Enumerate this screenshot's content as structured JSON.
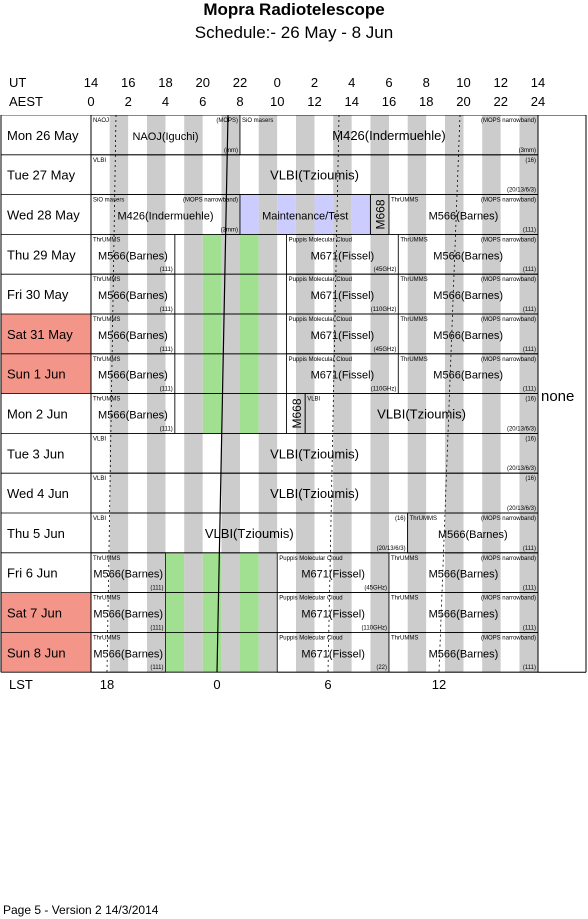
{
  "header": {
    "title": "Mopra Radiotelescope",
    "subtitle": "Schedule:- 26 May - 8  Jun"
  },
  "axes": {
    "ut_label": "UT",
    "aest_label": "AEST",
    "lst_label": "LST",
    "ut_ticks": [
      "14",
      "16",
      "18",
      "20",
      "22",
      "0",
      "2",
      "4",
      "6",
      "8",
      "10",
      "12",
      "14"
    ],
    "aest_ticks": [
      "0",
      "2",
      "4",
      "6",
      "8",
      "10",
      "12",
      "14",
      "16",
      "18",
      "20",
      "22",
      "24"
    ],
    "lst_ticks": [
      "18",
      "0",
      "6",
      "12"
    ]
  },
  "side_note": "none",
  "footer": "Page 5 - Version 2  14/3/2014",
  "colors": {
    "weekend": "#f4958a",
    "green": "#a0e090",
    "gray": "#cccccc",
    "blue": "#ccccff"
  },
  "days": [
    {
      "label": "Mon  26 May",
      "weekend": false,
      "blocks": [
        {
          "s": 0,
          "e": 8,
          "name": "NAOJ(Iguchi)",
          "tl": "NAOJ",
          "tr": "(MOPS)",
          "br": "(mm)"
        },
        {
          "s": 8,
          "e": 24,
          "name": "M426(Indermuehle)",
          "tl": "SiO masers",
          "tr": "(MOPS narrowband)",
          "br": "(3mm)"
        }
      ]
    },
    {
      "label": "Tue  27 May",
      "weekend": false,
      "blocks": [
        {
          "s": 0,
          "e": 24,
          "name": "VLBI(Tzioumis)",
          "tl": "VLBI",
          "tr": "(16)",
          "br": "(20/13/6/3)"
        }
      ]
    },
    {
      "label": "Wed  28 May",
      "weekend": false,
      "blocks": [
        {
          "s": 0,
          "e": 8,
          "name": "M426(Indermuehle)",
          "tl": "SiO masers",
          "tr": "(MOPS narrowband)",
          "br": "(3mm)"
        },
        {
          "s": 8,
          "e": 15,
          "name": "Maintenance/Test",
          "maint": true
        },
        {
          "s": 15,
          "e": 16,
          "name": "M668",
          "vertical": true
        },
        {
          "s": 16,
          "e": 24,
          "name": "M566(Barnes)",
          "tl": "ThrUMMS",
          "tr": "(MOPS narrowband)",
          "br": "(111)"
        }
      ]
    },
    {
      "label": "Thu  29 May",
      "weekend": false,
      "blocks": [
        {
          "s": 0,
          "e": 4.5,
          "name": "M566(Barnes)",
          "tl": "ThrUMMS",
          "br": "(111)"
        },
        {
          "s": 4.5,
          "e": 10.5,
          "gap": true
        },
        {
          "s": 10.5,
          "e": 16.5,
          "name": "M671(Fissel)",
          "tl": "Puppis Molecular Cloud",
          "br": "(45GHz)"
        },
        {
          "s": 16.5,
          "e": 24,
          "name": "M566(Barnes)",
          "tl": "ThrUMMS",
          "tr": "(MOPS narrowband)",
          "br": "(111)"
        }
      ]
    },
    {
      "label": "Fri    30 May",
      "weekend": false,
      "blocks": [
        {
          "s": 0,
          "e": 4.5,
          "name": "M566(Barnes)",
          "tl": "ThrUMMS",
          "br": "(111)"
        },
        {
          "s": 4.5,
          "e": 10.5,
          "gap": true
        },
        {
          "s": 10.5,
          "e": 16.5,
          "name": "M671(Fissel)",
          "tl": "Puppis Molecular Cloud",
          "br": "(110GHz)"
        },
        {
          "s": 16.5,
          "e": 24,
          "name": "M566(Barnes)",
          "tl": "ThrUMMS",
          "tr": "(MOPS narrowband)",
          "br": "(111)"
        }
      ]
    },
    {
      "label": "Sat   31 May",
      "weekend": true,
      "blocks": [
        {
          "s": 0,
          "e": 4.5,
          "name": "M566(Barnes)",
          "tl": "ThrUMMS",
          "br": "(111)"
        },
        {
          "s": 4.5,
          "e": 10.5,
          "gap": true
        },
        {
          "s": 10.5,
          "e": 16.5,
          "name": "M671(Fissel)",
          "tl": "Puppis Molecular Cloud",
          "br": "(45GHz)"
        },
        {
          "s": 16.5,
          "e": 24,
          "name": "M566(Barnes)",
          "tl": "ThrUMMS",
          "tr": "(MOPS narrowband)",
          "br": "(111)"
        }
      ]
    },
    {
      "label": "Sun    1  Jun",
      "weekend": true,
      "blocks": [
        {
          "s": 0,
          "e": 4.5,
          "name": "M566(Barnes)",
          "tl": "ThrUMMS",
          "br": "(111)"
        },
        {
          "s": 4.5,
          "e": 10.5,
          "gap": true
        },
        {
          "s": 10.5,
          "e": 16.5,
          "name": "M671(Fissel)",
          "tl": "Puppis Molecular Cloud",
          "br": "(110GHz)"
        },
        {
          "s": 16.5,
          "e": 24,
          "name": "M566(Barnes)",
          "tl": "ThrUMMS",
          "tr": "(MOPS narrowband)",
          "br": "(111)"
        }
      ]
    },
    {
      "label": "Mon    2  Jun",
      "weekend": false,
      "blocks": [
        {
          "s": 0,
          "e": 4.5,
          "name": "M566(Barnes)",
          "tl": "ThrUMMS",
          "br": "(111)"
        },
        {
          "s": 4.5,
          "e": 10.5,
          "gap": true
        },
        {
          "s": 10.5,
          "e": 11.5,
          "name": "M668",
          "vertical": true
        },
        {
          "s": 11.5,
          "e": 24,
          "name": "VLBI(Tzioumis)",
          "tl": "VLBI",
          "tr": "(16)",
          "br": "(20/13/6/3)"
        }
      ]
    },
    {
      "label": "Tue    3  Jun",
      "weekend": false,
      "blocks": [
        {
          "s": 0,
          "e": 24,
          "name": "VLBI(Tzioumis)",
          "tl": "VLBI",
          "tr": "(16)",
          "br": "(20/13/6/3)"
        }
      ]
    },
    {
      "label": "Wed    4  Jun",
      "weekend": false,
      "blocks": [
        {
          "s": 0,
          "e": 24,
          "name": "VLBI(Tzioumis)",
          "tl": "VLBI",
          "tr": "(16)",
          "br": "(20/13/6/3)"
        }
      ]
    },
    {
      "label": "Thu    5  Jun",
      "weekend": false,
      "blocks": [
        {
          "s": 0,
          "e": 17,
          "name": "VLBI(Tzioumis)",
          "tl": "VLBI",
          "tr": "(16)",
          "br": "(20/13/6/3)"
        },
        {
          "s": 17,
          "e": 24,
          "name": "M566(Barnes)",
          "tl": "ThrUMMS",
          "tr": "(MOPS narrowband)",
          "br": "(111)"
        }
      ]
    },
    {
      "label": "Fri      6  Jun",
      "weekend": false,
      "blocks": [
        {
          "s": 0,
          "e": 4,
          "name": "M566(Barnes)",
          "tl": "ThrUMMS",
          "br": "(111)"
        },
        {
          "s": 4,
          "e": 10,
          "gap": true
        },
        {
          "s": 10,
          "e": 16,
          "name": "M671(Fissel)",
          "tl": "Puppis Molecular Cloud",
          "br": "(45GHz)"
        },
        {
          "s": 16,
          "e": 24,
          "name": "M566(Barnes)",
          "tl": "ThrUMMS",
          "tr": "(MOPS narrowband)",
          "br": "(111)"
        }
      ]
    },
    {
      "label": "Sat     7  Jun",
      "weekend": true,
      "blocks": [
        {
          "s": 0,
          "e": 4,
          "name": "M566(Barnes)",
          "tl": "ThrUMMS",
          "br": "(111)"
        },
        {
          "s": 4,
          "e": 10,
          "gap": true
        },
        {
          "s": 10,
          "e": 16,
          "name": "M671(Fissel)",
          "tl": "Puppis Molecular Cloud",
          "br": "(110GHz)"
        },
        {
          "s": 16,
          "e": 24,
          "name": "M566(Barnes)",
          "tl": "ThrUMMS",
          "tr": "(MOPS narrowband)",
          "br": "(111)"
        }
      ]
    },
    {
      "label": "Sun     8  Jun",
      "weekend": true,
      "blocks": [
        {
          "s": 0,
          "e": 4,
          "name": "M566(Barnes)",
          "tl": "ThrUMMS",
          "br": "(111)"
        },
        {
          "s": 4,
          "e": 10,
          "gap": true
        },
        {
          "s": 10,
          "e": 16,
          "name": "M671(Fissel)",
          "tl": "Puppis Molecular Cloud",
          "br": "(22)"
        },
        {
          "s": 16,
          "e": 24,
          "name": "M566(Barnes)",
          "tl": "ThrUMMS",
          "tr": "(MOPS narrowband)",
          "br": "(111)"
        }
      ]
    }
  ]
}
